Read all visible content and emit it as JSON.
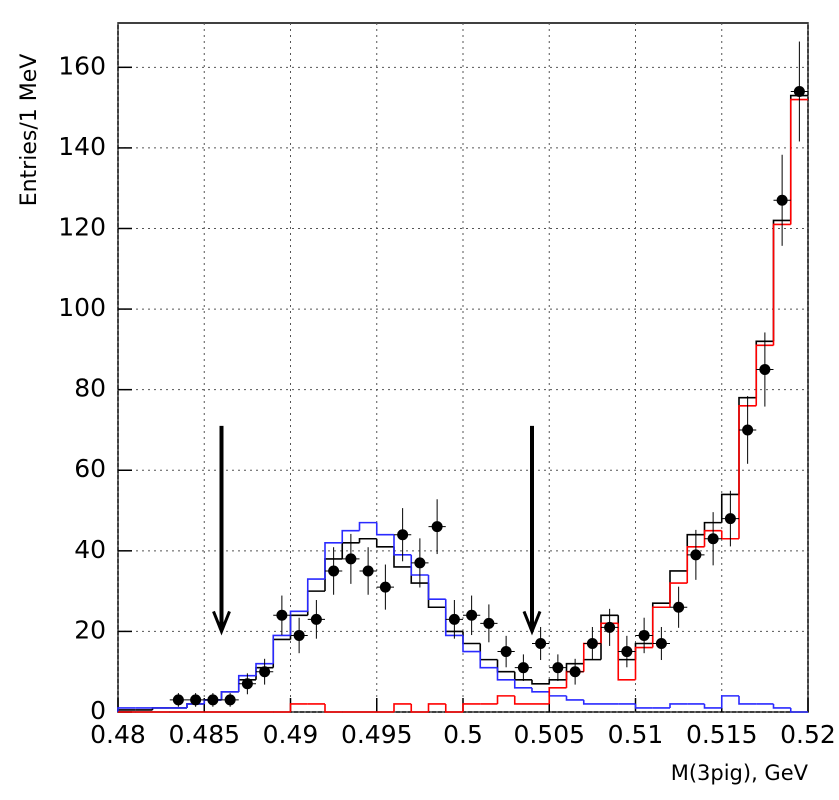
{
  "chart_data": {
    "type": "histogram",
    "x_label": "M(3pig), GeV",
    "y_label": "Entries/1 MeV",
    "bins": [
      0.48,
      0.481,
      0.482,
      0.483,
      0.484,
      0.485,
      0.486,
      0.487,
      0.488,
      0.489,
      0.49,
      0.491,
      0.492,
      0.493,
      0.494,
      0.495,
      0.496,
      0.497,
      0.498,
      0.499,
      0.5,
      0.501,
      0.502,
      0.503,
      0.504,
      0.505,
      0.506,
      0.507,
      0.508,
      0.509,
      0.51,
      0.511,
      0.512,
      0.513,
      0.514,
      0.515,
      0.516,
      0.517,
      0.518,
      0.519,
      0.52
    ],
    "series": [
      {
        "color": "#000000",
        "values": [
          0.5,
          0.5,
          1,
          1,
          2,
          3,
          5,
          8,
          11,
          18,
          24,
          30,
          38,
          42,
          43,
          41,
          36,
          32,
          26,
          20,
          17,
          13,
          10,
          8,
          7,
          8,
          12,
          13,
          24,
          13,
          17,
          27,
          35,
          44,
          47,
          54,
          78,
          92,
          122,
          153
        ]
      },
      {
        "color": "#2a2aff",
        "values": [
          1,
          1,
          1,
          1,
          2,
          3,
          5,
          9,
          12,
          19,
          25,
          33,
          42,
          45,
          47,
          44,
          39,
          34,
          28,
          19,
          15,
          11,
          8,
          6,
          5,
          4,
          3,
          2,
          2,
          2,
          1,
          1,
          2,
          2,
          1,
          4,
          2,
          2,
          1,
          0
        ]
      },
      {
        "color": "#ff0000",
        "values": [
          0,
          0,
          0,
          0,
          0,
          0,
          0,
          0,
          0,
          0,
          2,
          2,
          0,
          0,
          0,
          0,
          2,
          0,
          2,
          0,
          2,
          2,
          4,
          2,
          2,
          6,
          10,
          17,
          22,
          8,
          16,
          26,
          32,
          41,
          45,
          43,
          76,
          91,
          121,
          152
        ]
      }
    ],
    "points": {
      "color": "#000000",
      "values": [
        null,
        null,
        null,
        3,
        3,
        3,
        3,
        7,
        10,
        24,
        19,
        23,
        35,
        38,
        35,
        31,
        44,
        37,
        46,
        23,
        24,
        22,
        15,
        11,
        17,
        11,
        10,
        17,
        21,
        15,
        19,
        17,
        26,
        39,
        43,
        48,
        70,
        85,
        127,
        154
      ],
      "errors": [
        null,
        null,
        null,
        1.7,
        1.7,
        1.7,
        1.7,
        2.6,
        3.2,
        4.9,
        4.4,
        4.8,
        5.9,
        6.2,
        5.9,
        5.6,
        6.6,
        6.1,
        6.8,
        4.8,
        4.9,
        4.7,
        3.9,
        3.3,
        4.1,
        3.3,
        3.2,
        4.1,
        4.6,
        3.9,
        4.4,
        4.1,
        5.1,
        6.2,
        6.6,
        6.9,
        8.4,
        9.2,
        11.3,
        12.4
      ]
    },
    "arrows": [
      {
        "x": 0.486,
        "y_from": 71,
        "y_to": 20
      },
      {
        "x": 0.504,
        "y_from": 71,
        "y_to": 20
      }
    ],
    "xlim": [
      0.48,
      0.52
    ],
    "ylim": [
      0,
      171
    ],
    "xticks": [
      0.48,
      0.485,
      0.49,
      0.495,
      0.5,
      0.505,
      0.51,
      0.515,
      0.52
    ],
    "yticks": [
      0,
      20,
      40,
      60,
      80,
      100,
      120,
      140,
      160
    ],
    "grid": true
  }
}
